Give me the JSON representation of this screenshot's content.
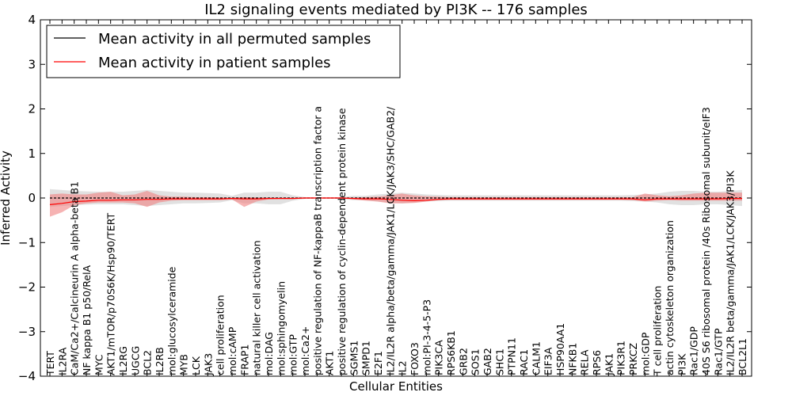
{
  "chart_data": {
    "type": "line",
    "title": "IL2 signaling events mediated by PI3K -- 176 samples",
    "xlabel": "Cellular Entities",
    "ylabel": "Inferred Activity",
    "ylim": [
      -4,
      4
    ],
    "yticks": [
      "4",
      "3",
      "2",
      "1",
      "0",
      "−1",
      "−2",
      "−3",
      "−4"
    ],
    "ytick_values": [
      4,
      3,
      2,
      1,
      0,
      -1,
      -2,
      -3,
      -4
    ],
    "grid": false,
    "legend_position": "top-left",
    "colors": {
      "permuted": "#000000",
      "patient": "#ff0000",
      "patient_band": "#f08080",
      "permuted_band": "#c8c8c8"
    },
    "categories": [
      "TERT",
      "IL2RA",
      "CaM/Ca2+/Calcineurin A alpha-beta B1",
      "NF kappa B1 p50/RelA",
      "MYC",
      "AKT1/mTOR/p70S6K/Hsp90/TERT",
      "IL2RG",
      "UGCG",
      "BCL2",
      "IL2RB",
      "mol:glucosylceramide",
      "MYB",
      "LCK",
      "JAK3",
      "cell proliferation",
      "mol:cAMP",
      "FRAP1",
      "natural killer cell activation",
      "mol:DAG",
      "mol:sphingomyelin",
      "mol:GTP",
      "mol:Ca2+",
      "positive regulation of NF-kappaB transcription factor a",
      "AKT1",
      "positive regulation of cyclin-dependent protein kinase",
      "SGMS1",
      "SMPD1",
      "E2F1",
      "IL2/IL2R alpha/beta/gamma/JAK1/LCK/JAK3/SHC/GAB2/",
      "IL2",
      "FOXO3",
      "mol:PI-3-4-5-P3",
      "PIK3CA",
      "RPS6KB1",
      "GRB2",
      "SOS1",
      "GAB2",
      "SHC1",
      "PTPN11",
      "RAC1",
      "CALM1",
      "EIF3A",
      "HSP90AA1",
      "NFKB1",
      "RELA",
      "RPS6",
      "JAK1",
      "PIK3R1",
      "PRKCZ",
      "mol:GDP",
      "T cell proliferation",
      "actin cytoskeleton organization",
      "PI3K",
      "Rac1/GDP",
      "40S S6 ribosomal protein /40s Ribosomal subunit/eIF3",
      "Rac1/GTP",
      "IL2/IL2R beta/gamma/JAK1/LCK/JAK3/PI3K",
      "BCL2L1"
    ],
    "series": [
      {
        "name": "Mean activity in all permuted samples",
        "values": [
          0,
          0,
          0,
          0,
          0,
          0,
          0,
          0,
          0,
          0,
          0,
          0,
          0,
          0,
          0,
          0,
          0,
          0,
          0,
          0,
          0,
          0,
          0,
          0,
          0,
          0,
          0,
          0,
          0,
          0,
          0,
          0,
          0,
          0,
          0,
          0,
          0,
          0,
          0,
          0,
          0,
          0,
          0,
          0,
          0,
          0,
          0,
          0,
          0,
          0,
          0,
          0,
          0,
          0,
          0,
          0,
          0,
          0
        ],
        "lower": [
          -0.2,
          -0.18,
          -0.16,
          -0.15,
          -0.14,
          -0.14,
          -0.14,
          -0.16,
          -0.18,
          -0.16,
          -0.14,
          -0.12,
          -0.12,
          -0.11,
          -0.1,
          -0.05,
          -0.12,
          -0.12,
          -0.14,
          -0.14,
          -0.06,
          -0.02,
          -0.01,
          -0.01,
          -0.02,
          -0.05,
          -0.05,
          -0.08,
          -0.1,
          -0.12,
          -0.1,
          -0.08,
          -0.07,
          -0.06,
          -0.06,
          -0.06,
          -0.06,
          -0.06,
          -0.06,
          -0.06,
          -0.06,
          -0.06,
          -0.06,
          -0.06,
          -0.06,
          -0.06,
          -0.06,
          -0.06,
          -0.07,
          -0.08,
          -0.1,
          -0.14,
          -0.16,
          -0.16,
          -0.14,
          -0.14,
          -0.16,
          -0.18
        ],
        "upper": [
          0.2,
          0.18,
          0.16,
          0.15,
          0.14,
          0.14,
          0.14,
          0.16,
          0.18,
          0.16,
          0.14,
          0.12,
          0.12,
          0.11,
          0.1,
          0.05,
          0.12,
          0.12,
          0.14,
          0.14,
          0.06,
          0.02,
          0.01,
          0.01,
          0.02,
          0.05,
          0.05,
          0.08,
          0.1,
          0.12,
          0.1,
          0.08,
          0.07,
          0.06,
          0.06,
          0.06,
          0.06,
          0.06,
          0.06,
          0.06,
          0.06,
          0.06,
          0.06,
          0.06,
          0.06,
          0.06,
          0.06,
          0.06,
          0.07,
          0.08,
          0.1,
          0.14,
          0.16,
          0.16,
          0.14,
          0.14,
          0.16,
          0.18
        ]
      },
      {
        "name": "Mean activity in patient samples",
        "values": [
          -0.15,
          -0.12,
          -0.08,
          -0.07,
          -0.05,
          -0.05,
          -0.04,
          -0.04,
          -0.03,
          -0.03,
          -0.02,
          -0.02,
          -0.02,
          -0.02,
          -0.02,
          -0.01,
          -0.02,
          -0.02,
          -0.01,
          -0.01,
          -0.01,
          0,
          0,
          0,
          0,
          -0.01,
          -0.02,
          -0.02,
          -0.03,
          -0.05,
          -0.06,
          -0.05,
          -0.03,
          -0.02,
          -0.02,
          -0.02,
          -0.02,
          -0.02,
          -0.02,
          -0.02,
          -0.02,
          -0.02,
          -0.02,
          -0.02,
          -0.02,
          -0.02,
          -0.02,
          -0.02,
          -0.02,
          -0.04,
          -0.02,
          -0.02,
          -0.02,
          -0.02,
          -0.02,
          -0.02,
          -0.01,
          -0.01
        ],
        "lower": [
          -0.42,
          -0.32,
          -0.16,
          -0.12,
          -0.1,
          -0.1,
          -0.1,
          -0.12,
          -0.2,
          -0.1,
          -0.06,
          -0.05,
          -0.05,
          -0.05,
          -0.05,
          -0.03,
          -0.2,
          -0.08,
          -0.03,
          -0.02,
          -0.02,
          -0.01,
          -0.01,
          -0.01,
          -0.01,
          -0.03,
          -0.06,
          -0.08,
          -0.12,
          -0.12,
          -0.11,
          -0.08,
          -0.05,
          -0.04,
          -0.04,
          -0.04,
          -0.04,
          -0.04,
          -0.04,
          -0.04,
          -0.04,
          -0.04,
          -0.04,
          -0.04,
          -0.04,
          -0.04,
          -0.04,
          -0.04,
          -0.05,
          -0.08,
          -0.06,
          -0.05,
          -0.06,
          -0.06,
          -0.06,
          -0.06,
          -0.06,
          -0.06
        ],
        "upper": [
          0.08,
          0.1,
          0.08,
          0.08,
          0.12,
          0.14,
          0.06,
          0.08,
          0.16,
          0.06,
          0.03,
          0.03,
          0.02,
          0.02,
          0.01,
          0.01,
          0.02,
          0.01,
          0.01,
          0.01,
          0.01,
          0.01,
          0.01,
          0.01,
          0.01,
          0.01,
          0.02,
          0.03,
          0.06,
          0.1,
          0.06,
          0.04,
          0.03,
          0.02,
          0.02,
          0.02,
          0.02,
          0.02,
          0.02,
          0.02,
          0.02,
          0.02,
          0.02,
          0.02,
          0.02,
          0.02,
          0.02,
          0.02,
          0.02,
          0.1,
          0.06,
          0.04,
          0.06,
          0.1,
          0.12,
          0.12,
          0.12,
          0.12
        ]
      }
    ]
  }
}
